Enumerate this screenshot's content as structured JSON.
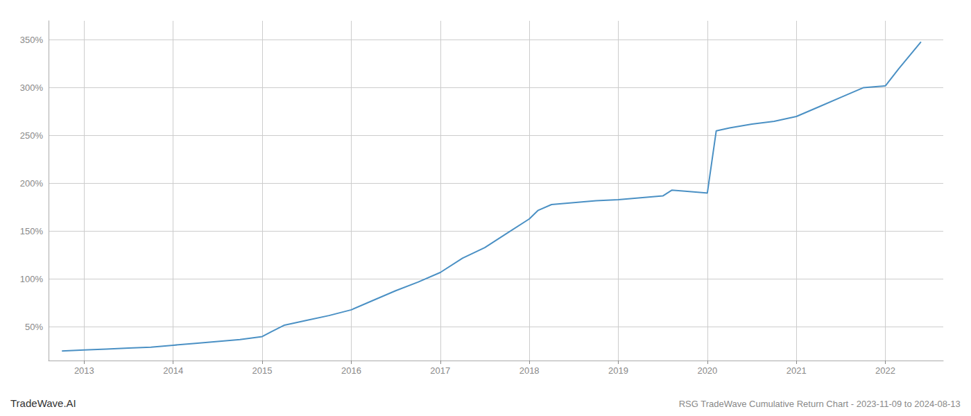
{
  "chart_data": {
    "type": "line",
    "title": "RSG TradeWave Cumulative Return Chart - 2023-11-09 to 2024-08-13",
    "annotations": [
      "TradeWave.AI"
    ],
    "x": [
      2012.75,
      2013.0,
      2013.25,
      2013.5,
      2013.75,
      2014.0,
      2014.25,
      2014.5,
      2014.75,
      2015.0,
      2015.1,
      2015.25,
      2015.5,
      2015.75,
      2016.0,
      2016.25,
      2016.5,
      2016.75,
      2017.0,
      2017.25,
      2017.5,
      2017.75,
      2018.0,
      2018.1,
      2018.25,
      2018.5,
      2018.75,
      2019.0,
      2019.25,
      2019.5,
      2019.6,
      2019.75,
      2020.0,
      2020.1,
      2020.25,
      2020.5,
      2020.75,
      2021.0,
      2021.25,
      2021.5,
      2021.75,
      2022.0,
      2022.15,
      2022.4
    ],
    "values": [
      25,
      26,
      27,
      28,
      29,
      31,
      33,
      35,
      37,
      40,
      45,
      52,
      57,
      62,
      68,
      78,
      88,
      97,
      107,
      122,
      133,
      148,
      163,
      172,
      178,
      180,
      182,
      183,
      185,
      187,
      193,
      192,
      190,
      255,
      258,
      262,
      265,
      270,
      280,
      290,
      300,
      302,
      320,
      348
    ],
    "color": "#4a90c4",
    "xlim": [
      2012.6,
      2022.65
    ],
    "xticks": [
      2013,
      2014,
      2015,
      2016,
      2017,
      2018,
      2019,
      2020,
      2021,
      2022
    ],
    "ylim": [
      15,
      370
    ],
    "yticks": [
      {
        "value": 50,
        "label": "50%"
      },
      {
        "value": 100,
        "label": "100%"
      },
      {
        "value": 150,
        "label": "150%"
      },
      {
        "value": 200,
        "label": "200%"
      },
      {
        "value": 250,
        "label": "250%"
      },
      {
        "value": 300,
        "label": "300%"
      },
      {
        "value": 350,
        "label": "350%"
      }
    ],
    "grid": true
  }
}
